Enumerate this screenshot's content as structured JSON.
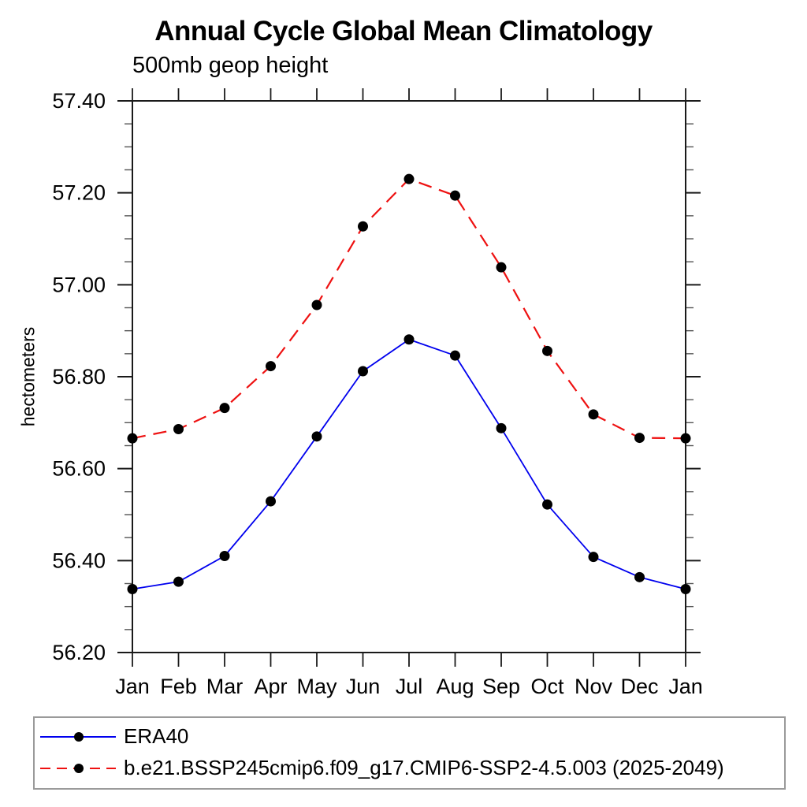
{
  "page": {
    "background_color": "#ffffff"
  },
  "chart_data": {
    "type": "line",
    "title": "Annual Cycle Global Mean Climatology",
    "subtitle": "500mb geop height",
    "ylabel": "hectometers",
    "xlabel": "",
    "grid": false,
    "legend_position": "bottom",
    "categories": [
      "Jan",
      "Feb",
      "Mar",
      "Apr",
      "May",
      "Jun",
      "Jul",
      "Aug",
      "Sep",
      "Oct",
      "Nov",
      "Dec",
      "Jan"
    ],
    "ylim": [
      56.2,
      57.4
    ],
    "ytick_step": 0.2,
    "yminor_step": 0.05,
    "yticks": [
      "56.20",
      "56.40",
      "56.60",
      "56.80",
      "57.00",
      "57.20",
      "57.40"
    ],
    "axis_color": "#1a1a1a",
    "series": [
      {
        "name": "ERA40",
        "color": "#0000ee",
        "style": "solid",
        "marker": "circle",
        "marker_color": "#000000",
        "values": [
          56.338,
          56.354,
          56.41,
          56.529,
          56.67,
          56.812,
          56.881,
          56.846,
          56.688,
          56.522,
          56.408,
          56.364,
          56.338
        ]
      },
      {
        "name": "b.e21.BSSP245cmip6.f09_g17.CMIP6-SSP2-4.5.003 (2025-2049)",
        "color": "#ee1111",
        "style": "dashed",
        "marker": "circle",
        "marker_color": "#000000",
        "values": [
          56.666,
          56.686,
          56.732,
          56.823,
          56.956,
          57.127,
          57.23,
          57.194,
          57.038,
          56.856,
          56.718,
          56.667,
          56.666
        ]
      }
    ]
  }
}
